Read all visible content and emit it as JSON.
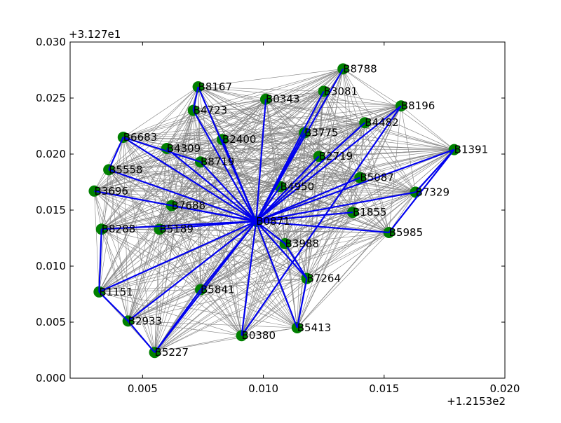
{
  "chart_data": {
    "type": "network",
    "xlim": [
      0.002,
      0.02
    ],
    "ylim": [
      0.0,
      0.03
    ],
    "x_offset_label": "+1.2153e2",
    "y_offset_label": "+3.127e1",
    "x_ticks": [
      {
        "value": 0.005,
        "label": "0.005"
      },
      {
        "value": 0.01,
        "label": "0.010"
      },
      {
        "value": 0.015,
        "label": "0.015"
      },
      {
        "value": 0.02,
        "label": "0.020"
      }
    ],
    "y_ticks": [
      {
        "value": 0.0,
        "label": "0.000"
      },
      {
        "value": 0.005,
        "label": "0.005"
      },
      {
        "value": 0.01,
        "label": "0.010"
      },
      {
        "value": 0.015,
        "label": "0.015"
      },
      {
        "value": 0.02,
        "label": "0.020"
      },
      {
        "value": 0.025,
        "label": "0.025"
      },
      {
        "value": 0.03,
        "label": "0.030"
      }
    ],
    "hub": "B0871",
    "nodes": [
      {
        "id": "B8788",
        "x": 0.0133,
        "y": 0.0276
      },
      {
        "id": "B8167",
        "x": 0.0073,
        "y": 0.026
      },
      {
        "id": "B0343",
        "x": 0.0101,
        "y": 0.0249
      },
      {
        "id": "B3081",
        "x": 0.0125,
        "y": 0.0256
      },
      {
        "id": "B8196",
        "x": 0.0157,
        "y": 0.0243
      },
      {
        "id": "B4723",
        "x": 0.0071,
        "y": 0.0239
      },
      {
        "id": "B4482",
        "x": 0.0142,
        "y": 0.0228
      },
      {
        "id": "B3775",
        "x": 0.0117,
        "y": 0.0219
      },
      {
        "id": "B6683",
        "x": 0.0042,
        "y": 0.0215
      },
      {
        "id": "B2400",
        "x": 0.0083,
        "y": 0.0213
      },
      {
        "id": "B1391",
        "x": 0.0179,
        "y": 0.0204
      },
      {
        "id": "B4309",
        "x": 0.006,
        "y": 0.0205
      },
      {
        "id": "B8719",
        "x": 0.0074,
        "y": 0.0193
      },
      {
        "id": "B2719",
        "x": 0.0123,
        "y": 0.0198
      },
      {
        "id": "B5558",
        "x": 0.0036,
        "y": 0.0186
      },
      {
        "id": "B5087",
        "x": 0.014,
        "y": 0.0179
      },
      {
        "id": "B4950",
        "x": 0.0107,
        "y": 0.0171
      },
      {
        "id": "B3696",
        "x": 0.003,
        "y": 0.0167
      },
      {
        "id": "B7329",
        "x": 0.0163,
        "y": 0.0166
      },
      {
        "id": "B7688",
        "x": 0.0062,
        "y": 0.0154
      },
      {
        "id": "B1855",
        "x": 0.0137,
        "y": 0.0148
      },
      {
        "id": "B0871",
        "x": 0.0097,
        "y": 0.014
      },
      {
        "id": "B8288",
        "x": 0.0033,
        "y": 0.0133
      },
      {
        "id": "B5189",
        "x": 0.0057,
        "y": 0.0133
      },
      {
        "id": "B5985",
        "x": 0.0152,
        "y": 0.013
      },
      {
        "id": "B3988",
        "x": 0.0109,
        "y": 0.012
      },
      {
        "id": "B7264",
        "x": 0.0118,
        "y": 0.0089
      },
      {
        "id": "B1151",
        "x": 0.0032,
        "y": 0.0077
      },
      {
        "id": "B5841",
        "x": 0.0074,
        "y": 0.0079
      },
      {
        "id": "B2933",
        "x": 0.0044,
        "y": 0.0051
      },
      {
        "id": "B5413",
        "x": 0.0114,
        "y": 0.0045
      },
      {
        "id": "B0380",
        "x": 0.0091,
        "y": 0.0038
      },
      {
        "id": "B5227",
        "x": 0.0055,
        "y": 0.0023
      }
    ],
    "highlighted_edges": [
      [
        "B0871",
        "B8788"
      ],
      [
        "B0871",
        "B8167"
      ],
      [
        "B0871",
        "B0343"
      ],
      [
        "B0871",
        "B3081"
      ],
      [
        "B0871",
        "B8196"
      ],
      [
        "B0871",
        "B4723"
      ],
      [
        "B0871",
        "B4482"
      ],
      [
        "B0871",
        "B3775"
      ],
      [
        "B0871",
        "B6683"
      ],
      [
        "B0871",
        "B2400"
      ],
      [
        "B0871",
        "B1391"
      ],
      [
        "B0871",
        "B4309"
      ],
      [
        "B0871",
        "B8719"
      ],
      [
        "B0871",
        "B2719"
      ],
      [
        "B0871",
        "B5558"
      ],
      [
        "B0871",
        "B5087"
      ],
      [
        "B0871",
        "B4950"
      ],
      [
        "B0871",
        "B3696"
      ],
      [
        "B0871",
        "B7329"
      ],
      [
        "B0871",
        "B7688"
      ],
      [
        "B0871",
        "B1855"
      ],
      [
        "B0871",
        "B8288"
      ],
      [
        "B0871",
        "B5189"
      ],
      [
        "B0871",
        "B5985"
      ],
      [
        "B0871",
        "B3988"
      ],
      [
        "B0871",
        "B7264"
      ],
      [
        "B0871",
        "B1151"
      ],
      [
        "B0871",
        "B5841"
      ],
      [
        "B0871",
        "B2933"
      ],
      [
        "B0871",
        "B5413"
      ],
      [
        "B0871",
        "B0380"
      ],
      [
        "B0871",
        "B5227"
      ],
      [
        "B8167",
        "B4723"
      ],
      [
        "B6683",
        "B5558"
      ],
      [
        "B6683",
        "B8719"
      ],
      [
        "B1391",
        "B7329"
      ],
      [
        "B1391",
        "B5985"
      ],
      [
        "B8288",
        "B1151"
      ],
      [
        "B1151",
        "B2933"
      ],
      [
        "B2933",
        "B5227"
      ],
      [
        "B5227",
        "B5841"
      ],
      [
        "B3988",
        "B7264"
      ],
      [
        "B7264",
        "B5413"
      ],
      [
        "B8196",
        "B0380"
      ]
    ],
    "colors": {
      "node": "#008000",
      "highlighted_edge": "#0000ee",
      "background_edge": "#808080"
    }
  }
}
